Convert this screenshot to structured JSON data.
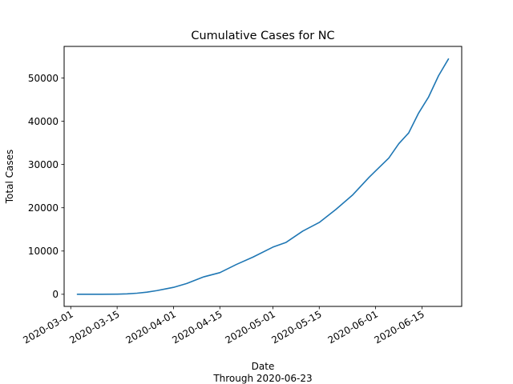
{
  "chart_data": {
    "type": "line",
    "title": "Cumulative Cases for NC",
    "xlabel": "Date",
    "xlabel_sub": "Through 2020-06-23",
    "ylabel": "Total Cases",
    "xlim": [
      "2020-02-28",
      "2020-06-27"
    ],
    "ylim": [
      -2800,
      57300
    ],
    "x_ticks": [
      "2020-03-01",
      "2020-03-15",
      "2020-04-01",
      "2020-04-15",
      "2020-05-01",
      "2020-05-15",
      "2020-06-01",
      "2020-06-15"
    ],
    "y_ticks": [
      0,
      10000,
      20000,
      30000,
      40000,
      50000
    ],
    "grid": false,
    "series": [
      {
        "color": "#1f77b4",
        "x": [
          "2020-03-03",
          "2020-03-10",
          "2020-03-15",
          "2020-03-18",
          "2020-03-21",
          "2020-03-24",
          "2020-03-27",
          "2020-03-30",
          "2020-04-01",
          "2020-04-05",
          "2020-04-10",
          "2020-04-15",
          "2020-04-20",
          "2020-04-25",
          "2020-05-01",
          "2020-05-05",
          "2020-05-10",
          "2020-05-15",
          "2020-05-20",
          "2020-05-25",
          "2020-05-30",
          "2020-06-01",
          "2020-06-05",
          "2020-06-08",
          "2020-06-11",
          "2020-06-14",
          "2020-06-17",
          "2020-06-20",
          "2020-06-23"
        ],
        "values": [
          1,
          10,
          40,
          100,
          250,
          500,
          850,
          1300,
          1600,
          2500,
          4000,
          5000,
          6900,
          8600,
          10900,
          12000,
          14600,
          16600,
          19600,
          22900,
          27000,
          28500,
          31500,
          34800,
          37300,
          41900,
          45600,
          50500,
          54400
        ]
      }
    ]
  }
}
